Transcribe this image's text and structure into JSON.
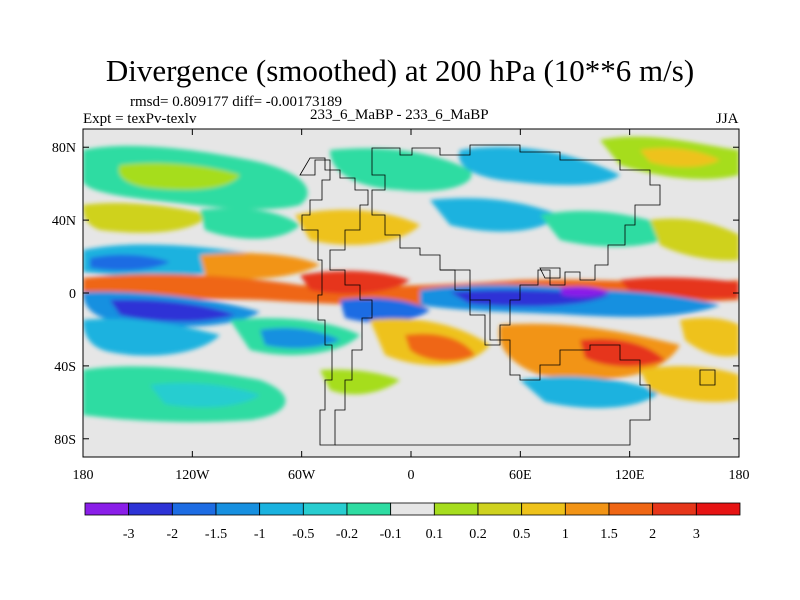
{
  "header": {
    "title": "Divergence (smoothed) at 200 hPa (10**6 m/s)",
    "stats": "rmsd= 0.809177 diff= -0.00173189",
    "expt": "Expt = texPv-texlv",
    "center_label": "233_6_MaBP - 233_6_MaBP",
    "season": "JJA"
  },
  "chart_data": {
    "type": "heatmap",
    "title": "Divergence (smoothed) at 200 hPa (10**6 m/s)",
    "subtitle": "233_6_MaBP - 233_6_MaBP",
    "units": "10**6 m/s",
    "x_range": [
      -180,
      180
    ],
    "y_range": [
      -90,
      90
    ],
    "x_ticks": [
      {
        "value": -180,
        "label": "180"
      },
      {
        "value": -120,
        "label": "120W"
      },
      {
        "value": -60,
        "label": "60W"
      },
      {
        "value": 0,
        "label": "0"
      },
      {
        "value": 60,
        "label": "60E"
      },
      {
        "value": 120,
        "label": "120E"
      },
      {
        "value": 180,
        "label": "180"
      }
    ],
    "y_ticks": [
      {
        "value": 80,
        "label": "80N"
      },
      {
        "value": 40,
        "label": "40N"
      },
      {
        "value": 0,
        "label": "0"
      },
      {
        "value": -40,
        "label": "40S"
      },
      {
        "value": -80,
        "label": "80S"
      }
    ],
    "colorbar": {
      "levels": [
        "-3",
        "-2",
        "-1.5",
        "-1",
        "-0.5",
        "-0.2",
        "-0.1",
        "0.1",
        "0.2",
        "0.5",
        "1",
        "1.5",
        "2",
        "3"
      ],
      "colors": [
        "#8a1ee8",
        "#2d33d6",
        "#1d6ce3",
        "#1790e0",
        "#1ab2df",
        "#28cdd0",
        "#2edca2",
        "#e6e6e6",
        "#a6dd1e",
        "#cfd21f",
        "#eec21b",
        "#f29416",
        "#ef6614",
        "#e6361a",
        "#e61313"
      ]
    },
    "background_color": "#e6e6e6"
  }
}
